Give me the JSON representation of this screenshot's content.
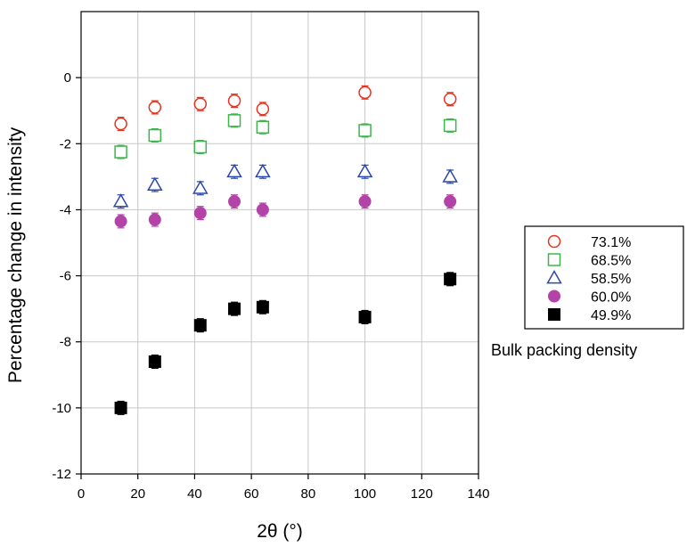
{
  "chart_data": {
    "type": "scatter",
    "xlabel": "2θ (°)",
    "ylabel": "Percentage change in intensity",
    "xlim": [
      0,
      140
    ],
    "ylim": [
      -12,
      2
    ],
    "x_ticks": [
      0,
      20,
      40,
      60,
      80,
      100,
      120,
      140
    ],
    "y_ticks": [
      -12,
      -10,
      -8,
      -6,
      -4,
      -2,
      0
    ],
    "grid": true,
    "legend_position": "right",
    "legend_note": "Bulk packing density",
    "x": [
      14,
      26,
      42,
      54,
      64,
      100,
      130
    ],
    "series": [
      {
        "name": "73.1%",
        "marker": "open-circle",
        "color": "#e8321e",
        "values": [
          -1.4,
          -0.9,
          -0.8,
          -0.7,
          -0.95,
          -0.45,
          -0.65
        ],
        "error": 0.2
      },
      {
        "name": "68.5%",
        "marker": "open-square",
        "color": "#3db54a",
        "values": [
          -2.25,
          -1.75,
          -2.1,
          -1.3,
          -1.5,
          -1.6,
          -1.45
        ],
        "error": 0.2
      },
      {
        "name": "58.5%",
        "marker": "open-triangle",
        "color": "#2b47a8",
        "values": [
          -3.75,
          -3.25,
          -3.35,
          -2.85,
          -2.85,
          -2.85,
          -3.0
        ],
        "error": 0.2
      },
      {
        "name": "60.0%",
        "marker": "filled-circle",
        "color": "#b443a8",
        "values": [
          -4.35,
          -4.3,
          -4.1,
          -3.75,
          -4.0,
          -3.75,
          -3.75
        ],
        "error": 0.2
      },
      {
        "name": "49.9%",
        "marker": "filled-square",
        "color": "#000000",
        "values": [
          -10.0,
          -8.6,
          -7.5,
          -7.0,
          -6.95,
          -7.25,
          -6.1
        ],
        "error": 0.2
      }
    ]
  }
}
